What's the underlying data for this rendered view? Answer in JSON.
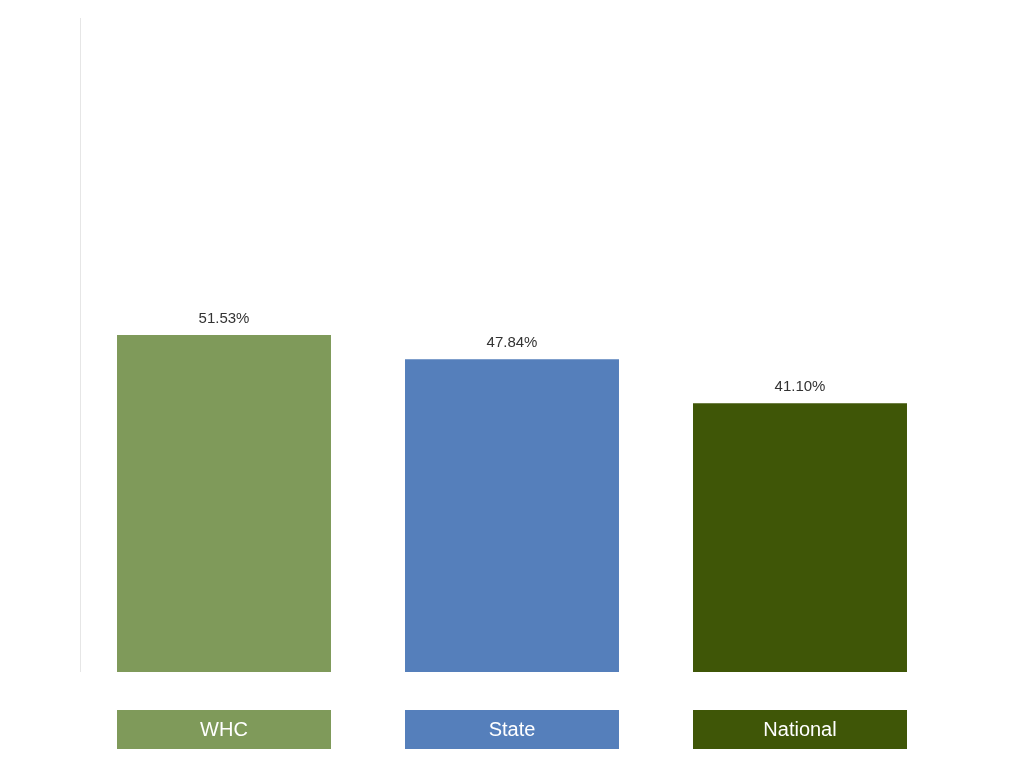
{
  "chart_data": {
    "type": "bar",
    "categories": [
      "WHC",
      "State",
      "National"
    ],
    "values": [
      51.53,
      47.84,
      41.1
    ],
    "value_labels": [
      "51.53%",
      "47.84%",
      "41.10%"
    ],
    "colors": [
      "#7f9a5a",
      "#557fbb",
      "#3f5607"
    ],
    "ylim": [
      0,
      100
    ],
    "data_labels": true,
    "tick_labels": "x",
    "grid": false
  }
}
